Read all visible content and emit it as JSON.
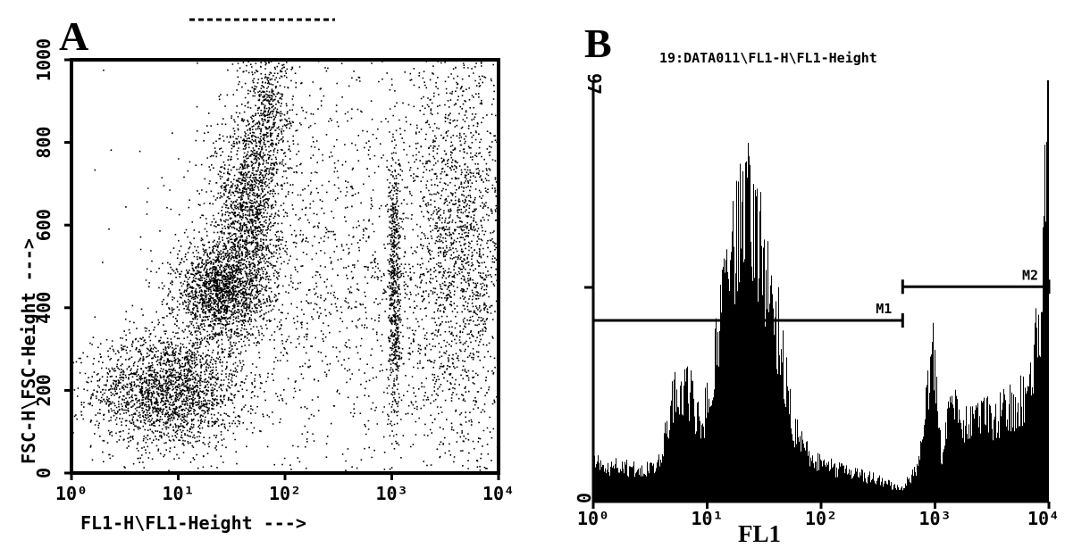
{
  "chart_data": [
    {
      "panel": "A",
      "type": "scatter",
      "title": "",
      "xlabel": "FL1-H\\FL1-Height --->",
      "ylabel": "FSC-H\\FSC-Height --->",
      "xscale": "log",
      "xlim": [
        1,
        10000
      ],
      "ylim": [
        0,
        1000
      ],
      "xticks": [
        "10⁰",
        "10¹",
        "10²",
        "10³",
        "10⁴"
      ],
      "yticks": [
        "0",
        "200",
        "400",
        "600",
        "800",
        "1000"
      ],
      "grid": false,
      "clusters": [
        {
          "name": "",
          "x_center": 8,
          "y_center": 200,
          "x_spread_decades": 0.35,
          "y_spread": 70,
          "points": 2200
        },
        {
          "name": "",
          "x_center": 25,
          "y_center": 440,
          "x_spread_decades": 0.22,
          "y_spread": 60,
          "points": 1800
        },
        {
          "name": "",
          "x_center": 45,
          "y_center": 650,
          "x_spread_decades": 0.15,
          "y_spread": 110,
          "points": 1300
        },
        {
          "name": "",
          "x_center": 70,
          "y_center": 880,
          "x_spread_decades": 0.12,
          "y_spread": 80,
          "points": 500
        },
        {
          "name": "",
          "x_center": 1050,
          "y_center": 450,
          "x_spread_decades": 0.03,
          "y_spread": 170,
          "points": 600
        },
        {
          "name": "",
          "x_center": 300,
          "y_center": 500,
          "x_spread_decades": 0.8,
          "y_spread": 250,
          "points": 1600
        },
        {
          "name": "",
          "x_center": 4500,
          "y_center": 550,
          "x_spread_decades": 0.25,
          "y_spread": 280,
          "points": 1900
        }
      ]
    },
    {
      "panel": "B",
      "type": "area",
      "title": "19:DATA011\\FL1-H\\FL1-Height",
      "xlabel": "FL1",
      "ylabel": "",
      "xscale": "log",
      "xlim": [
        1,
        10000
      ],
      "ylim": [
        0,
        100
      ],
      "xticks": [
        "10⁰",
        "10¹",
        "10²",
        "10³",
        "10⁴"
      ],
      "ytick_top": "97",
      "ytick_bottom": "0",
      "grid": false,
      "histogram_profile": {
        "x_decades": [
          0.0,
          0.3,
          0.55,
          0.65,
          0.72,
          0.8,
          0.88,
          0.95,
          1.05,
          1.15,
          1.25,
          1.35,
          1.45,
          1.55,
          1.65,
          1.75,
          1.9,
          2.1,
          2.4,
          2.7,
          2.85,
          2.92,
          2.97,
          3.02,
          3.06,
          3.1,
          3.17,
          3.25,
          3.35,
          3.5,
          3.65,
          3.75,
          3.85,
          3.92,
          3.97,
          4.0
        ],
        "counts": [
          9,
          8,
          8,
          18,
          26,
          28,
          23,
          18,
          30,
          48,
          60,
          70,
          64,
          52,
          36,
          18,
          10,
          8,
          6,
          3,
          8,
          22,
          40,
          25,
          8,
          18,
          24,
          18,
          20,
          20,
          22,
          24,
          30,
          45,
          80,
          97
        ]
      },
      "markers": [
        {
          "name": "M1",
          "x_start": 1,
          "x_end": 520,
          "level": 43
        },
        {
          "name": "M2",
          "x_start": 520,
          "x_end": 10000,
          "level": 51
        }
      ]
    }
  ]
}
